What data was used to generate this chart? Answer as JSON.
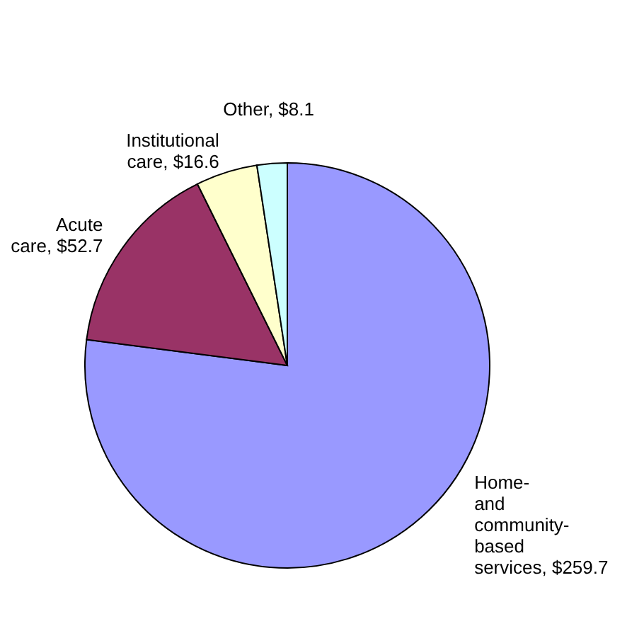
{
  "chart_data": {
    "type": "pie",
    "categories": [
      "Home-and community-based services",
      "Acute care",
      "Institutional care",
      "Other"
    ],
    "values": [
      259.7,
      52.7,
      16.6,
      8.1
    ],
    "value_labels": [
      "$259.7",
      "$52.7",
      "$16.6",
      "$8.1"
    ],
    "colors": [
      "#9999ff",
      "#993366",
      "#ffffcc",
      "#ccffff"
    ]
  }
}
